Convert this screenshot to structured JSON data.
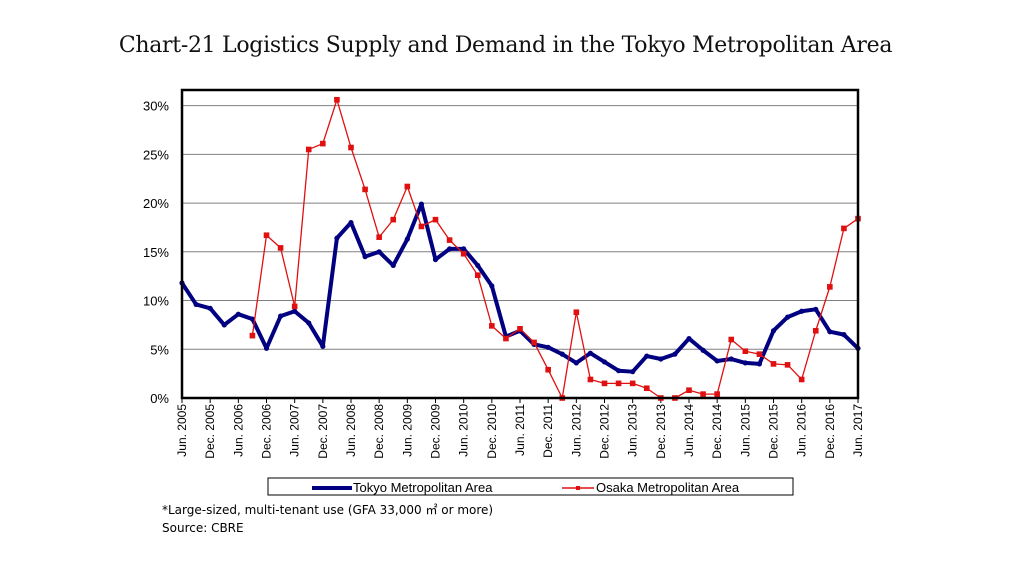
{
  "chart_data": {
    "type": "line",
    "title": "Chart-21 Logistics Supply and Demand in the Tokyo Metropolitan Area",
    "xlabel": "",
    "ylabel": "",
    "ylim": [
      0,
      30
    ],
    "y_ticks": [
      "0%",
      "5%",
      "10%",
      "15%",
      "20%",
      "25%",
      "30%"
    ],
    "y_tick_values": [
      0,
      5,
      10,
      15,
      20,
      25,
      30
    ],
    "grid": true,
    "legend_position": "bottom",
    "x_tick_labels": [
      "Jun. 2005",
      "Dec. 2005",
      "Jun. 2006",
      "Dec. 2006",
      "Jun. 2007",
      "Dec. 2007",
      "Jun. 2008",
      "Dec. 2008",
      "Jun. 2009",
      "Dec. 2009",
      "Jun. 2010",
      "Dec. 2010",
      "Jun. 2011",
      "Dec. 2011",
      "Jun. 2012",
      "Dec. 2012",
      "Jun. 2013",
      "Dec. 2013",
      "Jun. 2014",
      "Dec. 2014",
      "Jun. 2015",
      "Dec. 2015",
      "Jun. 2016",
      "Dec. 2016",
      "Jun. 2017"
    ],
    "x": [
      "Jun. 2005",
      "Sep. 2005",
      "Dec. 2005",
      "Mar. 2006",
      "Jun. 2006",
      "Sep. 2006",
      "Dec. 2006",
      "Mar. 2007",
      "Jun. 2007",
      "Sep. 2007",
      "Dec. 2007",
      "Mar. 2008",
      "Jun. 2008",
      "Sep. 2008",
      "Dec. 2008",
      "Mar. 2009",
      "Jun. 2009",
      "Sep. 2009",
      "Dec. 2009",
      "Mar. 2010",
      "Jun. 2010",
      "Sep. 2010",
      "Dec. 2010",
      "Mar. 2011",
      "Jun. 2011",
      "Sep. 2011",
      "Dec. 2011",
      "Mar. 2012",
      "Jun. 2012",
      "Sep. 2012",
      "Dec. 2012",
      "Mar. 2013",
      "Jun. 2013",
      "Sep. 2013",
      "Dec. 2013",
      "Mar. 2014",
      "Jun. 2014",
      "Sep. 2014",
      "Dec. 2014",
      "Mar. 2015",
      "Jun. 2015",
      "Sep. 2015",
      "Dec. 2015",
      "Mar. 2016",
      "Jun. 2016",
      "Sep. 2016",
      "Dec. 2016",
      "Mar. 2017",
      "Jun. 2017"
    ],
    "series": [
      {
        "name": "Tokyo Metropolitan Area",
        "color": "#000080",
        "values": [
          11.8,
          9.6,
          9.2,
          7.5,
          8.6,
          8.1,
          5.1,
          8.4,
          8.9,
          7.7,
          5.3,
          16.4,
          18.0,
          14.5,
          15.0,
          13.6,
          16.3,
          19.9,
          14.2,
          15.3,
          15.3,
          13.6,
          11.5,
          6.3,
          6.9,
          5.5,
          5.2,
          4.5,
          3.6,
          4.6,
          3.7,
          2.8,
          2.7,
          4.3,
          4.0,
          4.5,
          6.1,
          4.9,
          3.8,
          4.0,
          3.6,
          3.5,
          6.9,
          8.3,
          8.9,
          9.1,
          6.8,
          6.5,
          5.1
        ]
      },
      {
        "name": "Osaka Metropolitan Area",
        "color": "#e01010",
        "values": [
          null,
          null,
          null,
          null,
          null,
          6.4,
          16.7,
          15.4,
          9.4,
          25.5,
          26.1,
          30.6,
          25.7,
          21.4,
          16.5,
          18.3,
          21.7,
          17.6,
          18.3,
          16.2,
          14.8,
          12.6,
          7.4,
          6.1,
          7.1,
          5.7,
          2.9,
          0.0,
          8.8,
          1.9,
          1.5,
          1.5,
          1.5,
          1.0,
          0.0,
          0.0,
          0.8,
          0.4,
          0.4,
          6.0,
          4.8,
          4.5,
          3.5,
          3.4,
          1.9,
          6.9,
          11.4,
          17.4,
          18.4
        ]
      }
    ]
  },
  "notes": {
    "footnote": "*Large-sized, multi-tenant use (GFA 33,000 ㎡ or more)",
    "source": "Source: CBRE"
  }
}
